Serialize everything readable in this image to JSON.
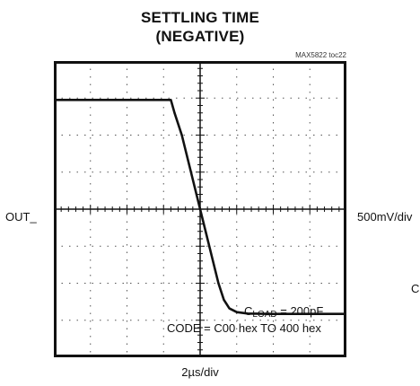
{
  "title": [
    "SETTLING TIME",
    "(NEGATIVE)"
  ],
  "figure_ref": "MAX5822 toc22",
  "trace_label": "OUT_",
  "vertical_scale": "500mV/div",
  "horizontal_scale": "2µs/div",
  "cut_off_label": "C",
  "annotation_1": {
    "main": "C",
    "sub": "LOAD",
    "rest": " = 200pF"
  },
  "annotation_2": "CODE = C00 hex TO 400 hex",
  "chart_data": {
    "type": "line",
    "title": "SETTLING TIME (NEGATIVE)",
    "xlabel": "2µs/div",
    "ylabel": "500mV/div",
    "x_divisions": 8,
    "y_divisions": 8,
    "xlim": [
      0,
      8
    ],
    "ylim": [
      -4,
      4
    ],
    "grid": true,
    "series": [
      {
        "name": "OUT_",
        "x": [
          0,
          3.2,
          3.3,
          3.5,
          4.0,
          4.5,
          4.65,
          4.8,
          5.0,
          5.3,
          6.0,
          8.0
        ],
        "y": [
          2.95,
          2.95,
          2.6,
          2.0,
          0.0,
          -2.0,
          -2.45,
          -2.68,
          -2.78,
          -2.82,
          -2.83,
          -2.83
        ]
      }
    ]
  }
}
